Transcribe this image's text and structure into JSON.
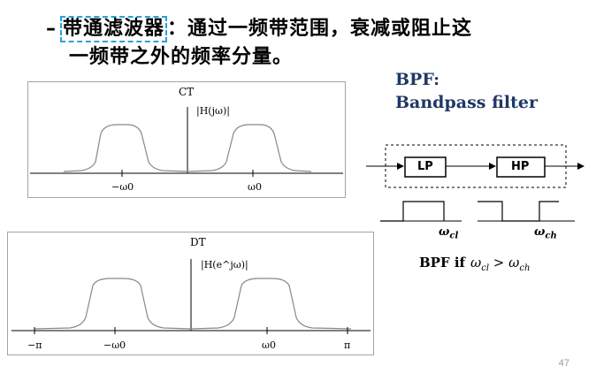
{
  "bullet": {
    "dash": "–",
    "term": "带通滤波器",
    "rest_line1": "：通过一频带范围，衰减或阻止这",
    "line2": "一频带之外的频率分量。"
  },
  "bpf": {
    "title": "BPF:",
    "subtitle": "Bandpass filter"
  },
  "ct_plot": {
    "label": "CT",
    "axis_name": "|H(jω)|",
    "ticks": [
      "−ω0",
      "ω0"
    ]
  },
  "dt_plot": {
    "label": "DT",
    "axis_name": "|H(e^jω)|",
    "ticks": [
      "−π",
      "−ω0",
      "ω0",
      "π"
    ]
  },
  "diagram": {
    "lp_label": "LP",
    "hp_label": "HP",
    "omega_cl": "ω",
    "omega_cl_sub": "cl",
    "omega_ch": "ω",
    "omega_ch_sub": "ch"
  },
  "condition": {
    "prefix": "BPF if",
    "lhs": "ω",
    "lhs_sub": "cl",
    "op": " > ",
    "rhs": "ω",
    "rhs_sub": "ch"
  },
  "page_number": "47"
}
